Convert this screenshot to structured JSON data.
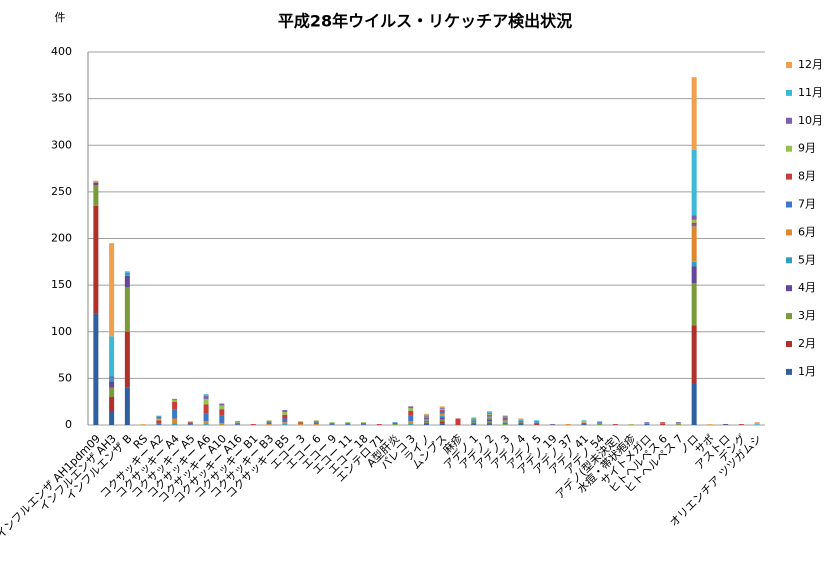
{
  "chart_data": {
    "type": "stacked-bar",
    "title": "平成28年ウイルス・リケッチア検出状況",
    "y_label": "件",
    "categories": [
      "インフルエンザ AH1pdm09",
      "インフルエンザ AH3",
      "インフルエンザ B",
      "RS",
      "コクサッキー A2",
      "コクサッキー A4",
      "コクサッキー A5",
      "コクサッキー A6",
      "コクサッキー A10",
      "コクサッキー A16",
      "コクサッキー B1",
      "コクサッキー B3",
      "コクサッキー B5",
      "エコー 3",
      "エコー 6",
      "エコー 9",
      "エコー 11",
      "エコー 18",
      "エンテロ 71",
      "A型肝炎",
      "パレコ 3",
      "ライノ",
      "ムンプス",
      "麻疹",
      "アデノ 1",
      "アデノ 2",
      "アデノ 3",
      "アデノ 4",
      "アデノ 5",
      "アデノ 19",
      "アデノ 37",
      "アデノ 41",
      "アデノ 54",
      "アデノ(型未決定)",
      "水痘・帯状疱疹",
      "サイトメガロ",
      "ヒトヘルペス 6",
      "ヒトヘルペス 7",
      "ノロ",
      "サポ",
      "アストロ",
      "デング",
      "オリエンチア ツツガムシ"
    ],
    "series": [
      {
        "name": "1月",
        "color": "#2f5f9e",
        "values": [
          120,
          15,
          40,
          0,
          0,
          0,
          0,
          0,
          0,
          0,
          0,
          0,
          0,
          0,
          0,
          0,
          0,
          0,
          0,
          0,
          0,
          1,
          2,
          0,
          1,
          1,
          0,
          1,
          0,
          0,
          0,
          1,
          0,
          0,
          0,
          1,
          0,
          0,
          45,
          0,
          0,
          0,
          0
        ]
      },
      {
        "name": "2月",
        "color": "#b0302c",
        "values": [
          115,
          15,
          60,
          0,
          0,
          0,
          0,
          0,
          0,
          0,
          0,
          0,
          0,
          0,
          0,
          0,
          0,
          0,
          0,
          0,
          0,
          1,
          2,
          0,
          1,
          1,
          0,
          1,
          1,
          0,
          0,
          0,
          0,
          0,
          0,
          0,
          1,
          0,
          62,
          0,
          0,
          0,
          0
        ]
      },
      {
        "name": "3月",
        "color": "#7a9a3a",
        "values": [
          22,
          10,
          48,
          0,
          0,
          0,
          0,
          0,
          0,
          0,
          0,
          0,
          0,
          0,
          0,
          0,
          0,
          0,
          0,
          1,
          0,
          1,
          2,
          0,
          1,
          2,
          1,
          1,
          0,
          0,
          0,
          0,
          1,
          0,
          0,
          0,
          0,
          1,
          45,
          0,
          0,
          0,
          0
        ]
      },
      {
        "name": "4月",
        "color": "#64479a",
        "values": [
          3,
          7,
          12,
          0,
          0,
          0,
          0,
          0,
          0,
          0,
          0,
          0,
          0,
          0,
          0,
          0,
          0,
          0,
          0,
          1,
          0,
          1,
          2,
          0,
          1,
          2,
          1,
          1,
          1,
          0,
          0,
          1,
          0,
          0,
          0,
          0,
          0,
          0,
          18,
          0,
          1,
          0,
          0
        ]
      },
      {
        "name": "5月",
        "color": "#2f9ec4",
        "values": [
          0,
          3,
          3,
          0,
          0,
          2,
          0,
          1,
          0,
          0,
          0,
          0,
          1,
          0,
          0,
          0,
          0,
          0,
          0,
          1,
          1,
          1,
          2,
          0,
          1,
          1,
          1,
          1,
          1,
          0,
          0,
          0,
          1,
          0,
          0,
          1,
          1,
          0,
          5,
          0,
          0,
          0,
          0
        ]
      },
      {
        "name": "6月",
        "color": "#e0862c",
        "values": [
          0,
          0,
          0,
          0,
          0,
          5,
          0,
          3,
          2,
          0,
          0,
          1,
          2,
          1,
          1,
          0,
          0,
          0,
          0,
          0,
          3,
          1,
          2,
          0,
          0,
          2,
          2,
          0,
          0,
          0,
          1,
          1,
          0,
          0,
          0,
          0,
          0,
          1,
          38,
          0,
          0,
          0,
          0
        ]
      },
      {
        "name": "7月",
        "color": "#3a78c8",
        "values": [
          0,
          0,
          0,
          0,
          2,
          10,
          1,
          8,
          8,
          1,
          0,
          2,
          4,
          1,
          2,
          1,
          1,
          1,
          0,
          0,
          6,
          1,
          2,
          0,
          1,
          1,
          2,
          0,
          1,
          0,
          0,
          0,
          1,
          0,
          0,
          0,
          0,
          0,
          2,
          0,
          0,
          0,
          0
        ]
      },
      {
        "name": "8月",
        "color": "#c83c3c",
        "values": [
          0,
          0,
          0,
          0,
          3,
          8,
          2,
          10,
          7,
          1,
          1,
          1,
          4,
          1,
          1,
          1,
          1,
          1,
          1,
          0,
          5,
          1,
          2,
          7,
          0,
          1,
          1,
          0,
          0,
          0,
          0,
          0,
          0,
          1,
          0,
          0,
          1,
          0,
          2,
          0,
          0,
          1,
          0
        ]
      },
      {
        "name": "9月",
        "color": "#98c04c",
        "values": [
          0,
          0,
          0,
          0,
          2,
          2,
          1,
          6,
          4,
          1,
          0,
          1,
          3,
          1,
          1,
          1,
          1,
          1,
          0,
          0,
          3,
          1,
          1,
          0,
          1,
          1,
          1,
          0,
          0,
          0,
          0,
          1,
          0,
          0,
          1,
          0,
          0,
          0,
          3,
          0,
          0,
          0,
          0
        ]
      },
      {
        "name": "10月",
        "color": "#7e5eb0",
        "values": [
          0,
          2,
          0,
          0,
          2,
          1,
          0,
          3,
          2,
          1,
          0,
          0,
          2,
          0,
          0,
          0,
          0,
          0,
          0,
          0,
          2,
          1,
          1,
          0,
          0,
          1,
          1,
          0,
          0,
          1,
          0,
          0,
          0,
          0,
          0,
          1,
          0,
          1,
          5,
          0,
          0,
          0,
          0
        ]
      },
      {
        "name": "11月",
        "color": "#3cb8d8",
        "values": [
          0,
          43,
          1,
          0,
          1,
          0,
          0,
          2,
          0,
          0,
          0,
          0,
          0,
          0,
          0,
          0,
          0,
          0,
          0,
          0,
          0,
          1,
          1,
          0,
          1,
          1,
          0,
          1,
          1,
          0,
          0,
          1,
          1,
          0,
          0,
          0,
          0,
          0,
          70,
          0,
          0,
          0,
          1
        ]
      },
      {
        "name": "12月",
        "color": "#f0a04c",
        "values": [
          2,
          100,
          1,
          1,
          0,
          0,
          0,
          0,
          0,
          0,
          0,
          0,
          0,
          0,
          0,
          0,
          0,
          0,
          0,
          0,
          0,
          1,
          1,
          0,
          0,
          1,
          0,
          1,
          0,
          0,
          0,
          0,
          0,
          0,
          0,
          0,
          0,
          0,
          78,
          1,
          0,
          0,
          2
        ]
      }
    ],
    "ylim": [
      0,
      400
    ],
    "yticks": [
      0,
      50,
      100,
      150,
      200,
      250,
      300,
      350,
      400
    ],
    "grid": true,
    "legend": "right"
  }
}
